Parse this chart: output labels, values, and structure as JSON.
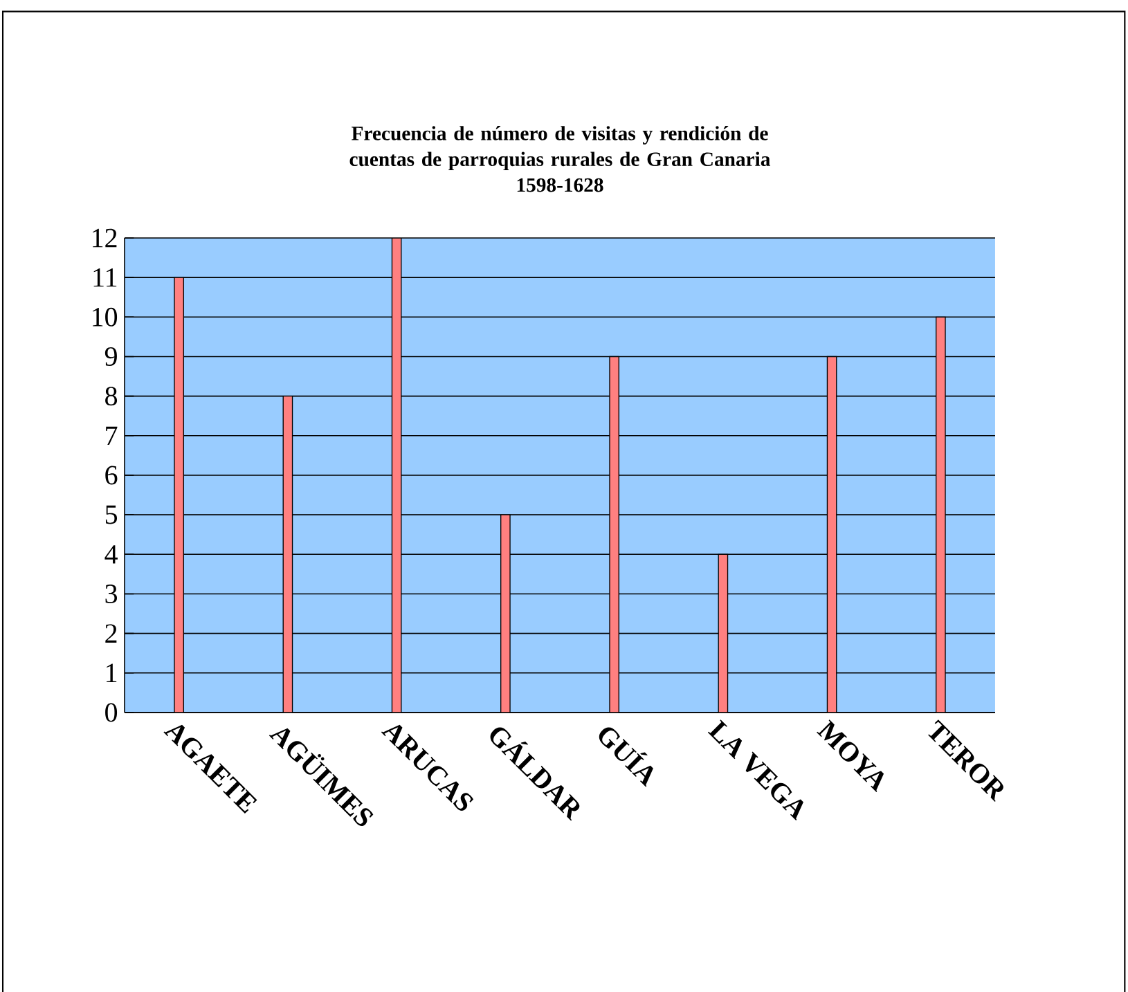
{
  "chart_data": {
    "type": "bar",
    "title": "Frecuencia de número de visitas y rendición de cuentas de parroquias rurales de Gran Canaria",
    "subtitle": "1598-1628",
    "categories": [
      "AGAETE",
      "AGÜIMES",
      "ARUCAS",
      "GÁLDAR",
      "GUÍA",
      "LA VEGA",
      "MOYA",
      "TEROR"
    ],
    "values": [
      11,
      8,
      12,
      5,
      9,
      4,
      9,
      10
    ],
    "color": "#ff8080",
    "ylim": [
      0,
      12
    ],
    "yticks": [
      0,
      1,
      2,
      3,
      4,
      5,
      6,
      7,
      8,
      9,
      10,
      11,
      12
    ],
    "grid": "y"
  }
}
